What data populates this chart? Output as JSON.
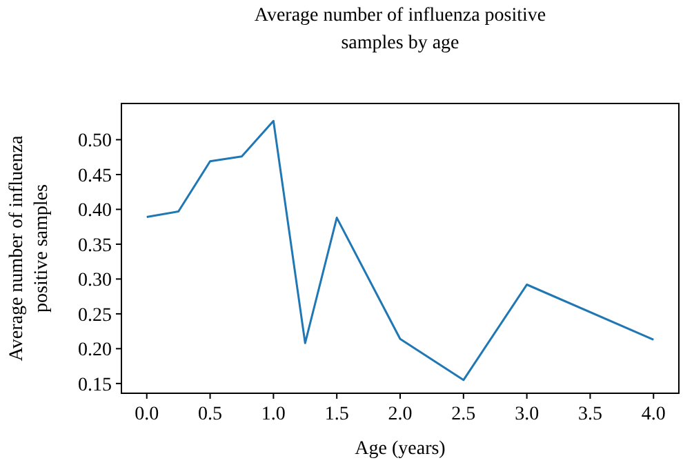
{
  "chart_data": {
    "type": "line",
    "title": "Average number of influenza positive\nsamples by age",
    "xlabel": "Age (years)",
    "ylabel": "Average number of influenza\npositive samples",
    "x": [
      0,
      0.25,
      0.5,
      0.75,
      1.0,
      1.25,
      1.5,
      2.0,
      2.5,
      3.0,
      4.0
    ],
    "series": [
      {
        "color": "#1f77b4",
        "values": [
          0.389,
          0.397,
          0.469,
          0.476,
          0.527,
          0.208,
          0.388,
          0.214,
          0.155,
          0.292,
          0.213
        ]
      }
    ],
    "xlim": [
      -0.2,
      4.2
    ],
    "ylim": [
      0.136,
      0.552
    ],
    "xticks": [
      {
        "value": 0,
        "label": "0.0"
      },
      {
        "value": 0.5,
        "label": "0.5"
      },
      {
        "value": 1,
        "label": "1.0"
      },
      {
        "value": 1.5,
        "label": "1.5"
      },
      {
        "value": 2,
        "label": "2.0"
      },
      {
        "value": 2.5,
        "label": "2.5"
      },
      {
        "value": 3,
        "label": "3.0"
      },
      {
        "value": 3.5,
        "label": "3.5"
      },
      {
        "value": 4,
        "label": "4.0"
      }
    ],
    "yticks": [
      {
        "value": 0.15,
        "label": "0.15"
      },
      {
        "value": 0.2,
        "label": "0.20"
      },
      {
        "value": 0.25,
        "label": "0.25"
      },
      {
        "value": 0.3,
        "label": "0.30"
      },
      {
        "value": 0.35,
        "label": "0.35"
      },
      {
        "value": 0.4,
        "label": "0.40"
      },
      {
        "value": 0.45,
        "label": "0.45"
      },
      {
        "value": 0.5,
        "label": "0.50"
      }
    ],
    "grid": false,
    "marker": "none",
    "line_style": "solid"
  }
}
